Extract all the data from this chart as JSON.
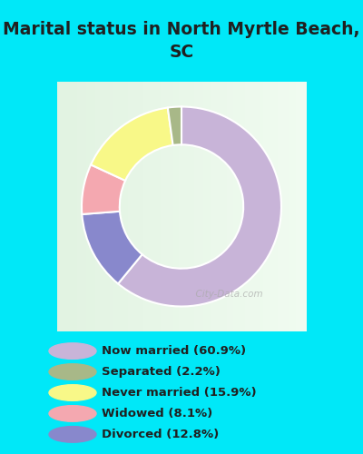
{
  "title": "Marital status in North Myrtle Beach,\nSC",
  "slices": [
    60.9,
    12.8,
    8.1,
    15.9,
    2.2
  ],
  "colors_pie": [
    "#c8b4d8",
    "#8888cc",
    "#f4a8b0",
    "#f8f888",
    "#a8b888"
  ],
  "legend_colors": [
    "#c8b4d8",
    "#a8b888",
    "#f8f888",
    "#f4a8b0",
    "#8888cc"
  ],
  "legend_labels": [
    "Now married (60.9%)",
    "Separated (2.2%)",
    "Never married (15.9%)",
    "Widowed (8.1%)",
    "Divorced (12.8%)"
  ],
  "bg_cyan": "#00e8f8",
  "bg_chart_color1": "#d8ede0",
  "bg_chart_color2": "#f0f8f0",
  "title_color": "#202020",
  "watermark": "City-Data.com",
  "start_angle": 90,
  "donut_width": 0.38
}
